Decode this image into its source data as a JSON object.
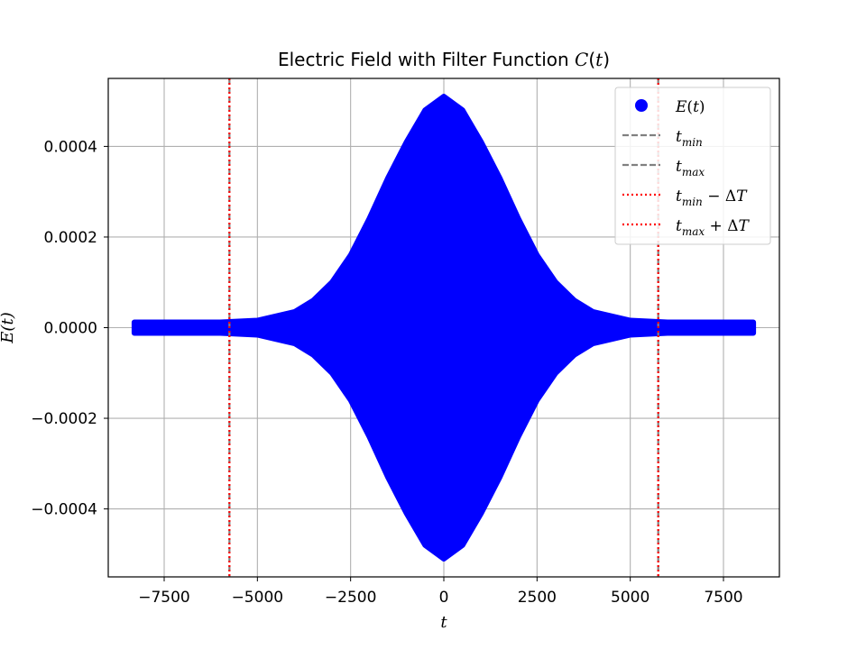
{
  "chart_data": {
    "type": "scatter",
    "title": "Electric Field with Filter Function C(t)",
    "title_parts": {
      "prefix": "Electric Field with Filter Function ",
      "func": "C",
      "arg": "t"
    },
    "xlabel": "t",
    "ylabel": "E(t)",
    "xlim": [
      -9000,
      9000
    ],
    "ylim": [
      -0.00055,
      0.00055
    ],
    "x_ticks": [
      -7500,
      -5000,
      -2500,
      0,
      2500,
      5000,
      7500
    ],
    "x_tick_labels": [
      "−7500",
      "−5000",
      "−2500",
      "0",
      "2500",
      "5000",
      "7500"
    ],
    "y_ticks": [
      -0.0004,
      -0.0002,
      0,
      0.0002,
      0.0004
    ],
    "y_tick_labels": [
      "−0.0004",
      "−0.0002",
      "0.0000",
      "0.0002",
      "0.0004"
    ],
    "grid": true,
    "legend_position": "upper right",
    "series": [
      {
        "name": "E(t)",
        "kind": "scatter",
        "color": "#0000ff",
        "envelope": {
          "t": [
            -8300,
            -6000,
            -5000,
            -4000,
            -3500,
            -3000,
            -2500,
            -2000,
            -1500,
            -1000,
            -500,
            0,
            500,
            1000,
            1500,
            2000,
            2500,
            3000,
            3500,
            4000,
            5000,
            6000,
            8300
          ],
          "amplitude": [
            1.2e-05,
            1.2e-05,
            1.6e-05,
            3.5e-05,
            6e-05,
            0.0001,
            0.00016,
            0.00024,
            0.00033,
            0.00041,
            0.00048,
            0.00051,
            0.00048,
            0.00041,
            0.00033,
            0.00024,
            0.00016,
            0.0001,
            6e-05,
            3.5e-05,
            1.6e-05,
            1.2e-05,
            1.2e-05
          ]
        }
      },
      {
        "name": "t_min",
        "kind": "vline",
        "style": "dashed",
        "color": "#808080",
        "x": -5750
      },
      {
        "name": "t_max",
        "kind": "vline",
        "style": "dashed",
        "color": "#808080",
        "x": 5750
      },
      {
        "name": "t_min − ΔT",
        "kind": "vline",
        "style": "dotted",
        "color": "#ff0000",
        "x": -5750
      },
      {
        "name": "t_max + ΔT",
        "kind": "vline",
        "style": "dotted",
        "color": "#ff0000",
        "x": 5750
      }
    ],
    "legend": [
      {
        "kind": "scatter",
        "color": "#0000ff",
        "main": "E",
        "arg": "t",
        "sub": "",
        "suffix": ""
      },
      {
        "kind": "dashed",
        "color": "#808080",
        "main": "t",
        "arg": "",
        "sub": "min",
        "suffix": ""
      },
      {
        "kind": "dashed",
        "color": "#808080",
        "main": "t",
        "arg": "",
        "sub": "max",
        "suffix": ""
      },
      {
        "kind": "dotted",
        "color": "#ff0000",
        "main": "t",
        "arg": "",
        "sub": "min",
        "suffix": " − ΔT"
      },
      {
        "kind": "dotted",
        "color": "#ff0000",
        "main": "t",
        "arg": "",
        "sub": "max",
        "suffix": " + ΔT"
      }
    ]
  }
}
